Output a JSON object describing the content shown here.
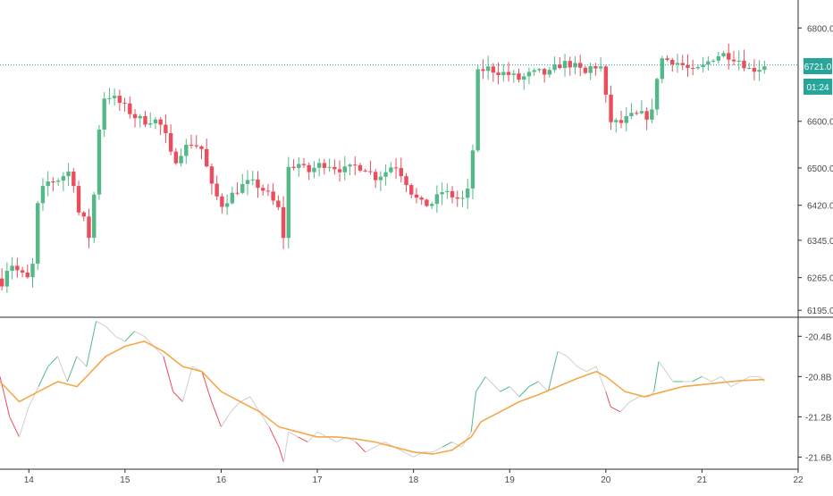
{
  "colors": {
    "up": "#53b987",
    "down": "#eb4d5c",
    "last_price_line": "#26a69a",
    "ma_line": "#f5a84a",
    "neutral_line": "#cfcfcf",
    "axis_text": "#4a4a4a",
    "divider": "#2b2b2b"
  },
  "price_axis": {
    "ticks": [
      "6800.0",
      "6600.0",
      "6500.0",
      "6420.0",
      "6345.0",
      "6265.0",
      "6195.0"
    ],
    "last_price_label": "6721.0",
    "countdown_label": "01:24"
  },
  "indicator_axis": {
    "ticks": [
      "-20.4B",
      "-20.8B",
      "-21.2B",
      "-21.6B"
    ]
  },
  "time_axis": {
    "ticks": [
      "14",
      "15",
      "16",
      "17",
      "18",
      "19",
      "20",
      "21",
      "22"
    ]
  },
  "chart_data": [
    {
      "type": "candlestick",
      "last_price": 6721,
      "ylim": [
        6180,
        6860
      ],
      "x_days": [
        13.7,
        22
      ],
      "candles_close_path": [
        [
          13.72,
          6255
        ],
        [
          13.8,
          6300
        ],
        [
          13.9,
          6275
        ],
        [
          14.0,
          6260
        ],
        [
          14.05,
          6300
        ],
        [
          14.1,
          6440
        ],
        [
          14.2,
          6470
        ],
        [
          14.3,
          6475
        ],
        [
          14.4,
          6490
        ],
        [
          14.45,
          6495
        ],
        [
          14.5,
          6410
        ],
        [
          14.6,
          6380
        ],
        [
          14.62,
          6345
        ],
        [
          14.7,
          6480
        ],
        [
          14.75,
          6650
        ],
        [
          14.85,
          6655
        ],
        [
          15.0,
          6630
        ],
        [
          15.1,
          6610
        ],
        [
          15.2,
          6600
        ],
        [
          15.3,
          6605
        ],
        [
          15.4,
          6585
        ],
        [
          15.5,
          6510
        ],
        [
          15.6,
          6540
        ],
        [
          15.7,
          6555
        ],
        [
          15.8,
          6540
        ],
        [
          15.9,
          6460
        ],
        [
          16.0,
          6420
        ],
        [
          16.1,
          6440
        ],
        [
          16.2,
          6460
        ],
        [
          16.3,
          6470
        ],
        [
          16.4,
          6460
        ],
        [
          16.5,
          6440
        ],
        [
          16.6,
          6410
        ],
        [
          16.65,
          6350
        ],
        [
          16.7,
          6500
        ],
        [
          16.8,
          6510
        ],
        [
          16.9,
          6490
        ],
        [
          17.0,
          6505
        ],
        [
          17.1,
          6510
        ],
        [
          17.2,
          6500
        ],
        [
          17.3,
          6495
        ],
        [
          17.4,
          6505
        ],
        [
          17.5,
          6500
        ],
        [
          17.6,
          6480
        ],
        [
          17.7,
          6490
        ],
        [
          17.8,
          6510
        ],
        [
          17.9,
          6480
        ],
        [
          18.0,
          6440
        ],
        [
          18.1,
          6420
        ],
        [
          18.2,
          6425
        ],
        [
          18.3,
          6450
        ],
        [
          18.4,
          6440
        ],
        [
          18.5,
          6430
        ],
        [
          18.6,
          6460
        ],
        [
          18.65,
          6700
        ],
        [
          18.75,
          6715
        ],
        [
          18.9,
          6705
        ],
        [
          19.0,
          6700
        ],
        [
          19.1,
          6690
        ],
        [
          19.2,
          6700
        ],
        [
          19.3,
          6705
        ],
        [
          19.4,
          6700
        ],
        [
          19.5,
          6720
        ],
        [
          19.6,
          6725
        ],
        [
          19.7,
          6715
        ],
        [
          19.8,
          6700
        ],
        [
          19.85,
          6720
        ],
        [
          19.95,
          6715
        ],
        [
          20.0,
          6650
        ],
        [
          20.05,
          6600
        ],
        [
          20.15,
          6595
        ],
        [
          20.25,
          6610
        ],
        [
          20.35,
          6615
        ],
        [
          20.45,
          6610
        ],
        [
          20.5,
          6625
        ],
        [
          20.55,
          6735
        ],
        [
          20.7,
          6730
        ],
        [
          20.8,
          6720
        ],
        [
          20.9,
          6705
        ],
        [
          21.0,
          6715
        ],
        [
          21.1,
          6735
        ],
        [
          21.2,
          6745
        ],
        [
          21.3,
          6740
        ],
        [
          21.4,
          6730
        ],
        [
          21.5,
          6710
        ],
        [
          21.6,
          6715
        ],
        [
          21.65,
          6721
        ]
      ]
    },
    {
      "type": "line",
      "ylim": [
        -21.72,
        -20.22
      ],
      "series": [
        {
          "values_path": [
            [
              13.7,
              -20.8
            ],
            [
              13.8,
              -21.2
            ],
            [
              13.9,
              -21.4
            ],
            [
              14.0,
              -21.1
            ],
            [
              14.1,
              -20.9
            ],
            [
              14.2,
              -20.7
            ],
            [
              14.3,
              -20.6
            ],
            [
              14.4,
              -20.85
            ],
            [
              14.5,
              -20.6
            ],
            [
              14.6,
              -20.7
            ],
            [
              14.7,
              -20.25
            ],
            [
              14.8,
              -20.3
            ],
            [
              14.9,
              -20.4
            ],
            [
              15.0,
              -20.45
            ],
            [
              15.1,
              -20.35
            ],
            [
              15.2,
              -20.4
            ],
            [
              15.3,
              -20.5
            ],
            [
              15.4,
              -20.6
            ],
            [
              15.5,
              -20.95
            ],
            [
              15.6,
              -21.05
            ],
            [
              15.7,
              -20.7
            ],
            [
              15.8,
              -20.75
            ],
            [
              15.9,
              -21.05
            ],
            [
              16.0,
              -21.3
            ],
            [
              16.1,
              -21.15
            ],
            [
              16.2,
              -21.05
            ],
            [
              16.3,
              -21.0
            ],
            [
              16.4,
              -21.15
            ],
            [
              16.5,
              -21.3
            ],
            [
              16.6,
              -21.5
            ],
            [
              16.65,
              -21.65
            ],
            [
              16.7,
              -21.35
            ],
            [
              16.8,
              -21.4
            ],
            [
              16.9,
              -21.45
            ],
            [
              17.0,
              -21.35
            ],
            [
              17.1,
              -21.4
            ],
            [
              17.2,
              -21.45
            ],
            [
              17.3,
              -21.4
            ],
            [
              17.4,
              -21.45
            ],
            [
              17.5,
              -21.55
            ],
            [
              17.6,
              -21.5
            ],
            [
              17.7,
              -21.45
            ],
            [
              17.8,
              -21.5
            ],
            [
              17.9,
              -21.55
            ],
            [
              18.0,
              -21.6
            ],
            [
              18.1,
              -21.55
            ],
            [
              18.2,
              -21.55
            ],
            [
              18.3,
              -21.5
            ],
            [
              18.4,
              -21.45
            ],
            [
              18.5,
              -21.5
            ],
            [
              18.6,
              -21.35
            ],
            [
              18.65,
              -20.95
            ],
            [
              18.75,
              -20.8
            ],
            [
              18.9,
              -20.95
            ],
            [
              19.0,
              -20.9
            ],
            [
              19.1,
              -21.0
            ],
            [
              19.2,
              -20.9
            ],
            [
              19.3,
              -20.85
            ],
            [
              19.4,
              -20.95
            ],
            [
              19.5,
              -20.55
            ],
            [
              19.6,
              -20.6
            ],
            [
              19.7,
              -20.7
            ],
            [
              19.8,
              -20.75
            ],
            [
              19.9,
              -20.7
            ],
            [
              20.0,
              -20.95
            ],
            [
              20.05,
              -21.1
            ],
            [
              20.15,
              -21.15
            ],
            [
              20.25,
              -21.05
            ],
            [
              20.35,
              -21.0
            ],
            [
              20.45,
              -21.0
            ],
            [
              20.5,
              -20.95
            ],
            [
              20.55,
              -20.65
            ],
            [
              20.7,
              -20.85
            ],
            [
              20.8,
              -20.85
            ],
            [
              20.9,
              -20.85
            ],
            [
              21.0,
              -20.8
            ],
            [
              21.1,
              -20.85
            ],
            [
              21.2,
              -20.8
            ],
            [
              21.3,
              -20.9
            ],
            [
              21.4,
              -20.85
            ],
            [
              21.5,
              -20.8
            ],
            [
              21.6,
              -20.8
            ],
            [
              21.65,
              -20.85
            ]
          ]
        },
        {
          "values_path": [
            [
              13.7,
              -20.85
            ],
            [
              13.9,
              -21.05
            ],
            [
              14.1,
              -20.95
            ],
            [
              14.3,
              -20.85
            ],
            [
              14.5,
              -20.9
            ],
            [
              14.6,
              -20.8
            ],
            [
              14.8,
              -20.6
            ],
            [
              15.0,
              -20.5
            ],
            [
              15.2,
              -20.45
            ],
            [
              15.4,
              -20.55
            ],
            [
              15.6,
              -20.7
            ],
            [
              15.8,
              -20.75
            ],
            [
              16.0,
              -20.95
            ],
            [
              16.2,
              -21.05
            ],
            [
              16.4,
              -21.15
            ],
            [
              16.6,
              -21.3
            ],
            [
              16.8,
              -21.35
            ],
            [
              17.0,
              -21.4
            ],
            [
              17.2,
              -21.4
            ],
            [
              17.4,
              -21.42
            ],
            [
              17.6,
              -21.45
            ],
            [
              17.8,
              -21.5
            ],
            [
              18.0,
              -21.55
            ],
            [
              18.2,
              -21.57
            ],
            [
              18.4,
              -21.53
            ],
            [
              18.6,
              -21.4
            ],
            [
              18.7,
              -21.25
            ],
            [
              18.9,
              -21.15
            ],
            [
              19.1,
              -21.05
            ],
            [
              19.3,
              -20.98
            ],
            [
              19.5,
              -20.9
            ],
            [
              19.7,
              -20.82
            ],
            [
              19.9,
              -20.75
            ],
            [
              20.0,
              -20.8
            ],
            [
              20.2,
              -20.95
            ],
            [
              20.4,
              -21.0
            ],
            [
              20.6,
              -20.95
            ],
            [
              20.8,
              -20.9
            ],
            [
              21.0,
              -20.88
            ],
            [
              21.2,
              -20.86
            ],
            [
              21.4,
              -20.84
            ],
            [
              21.65,
              -20.83
            ]
          ]
        }
      ]
    }
  ]
}
